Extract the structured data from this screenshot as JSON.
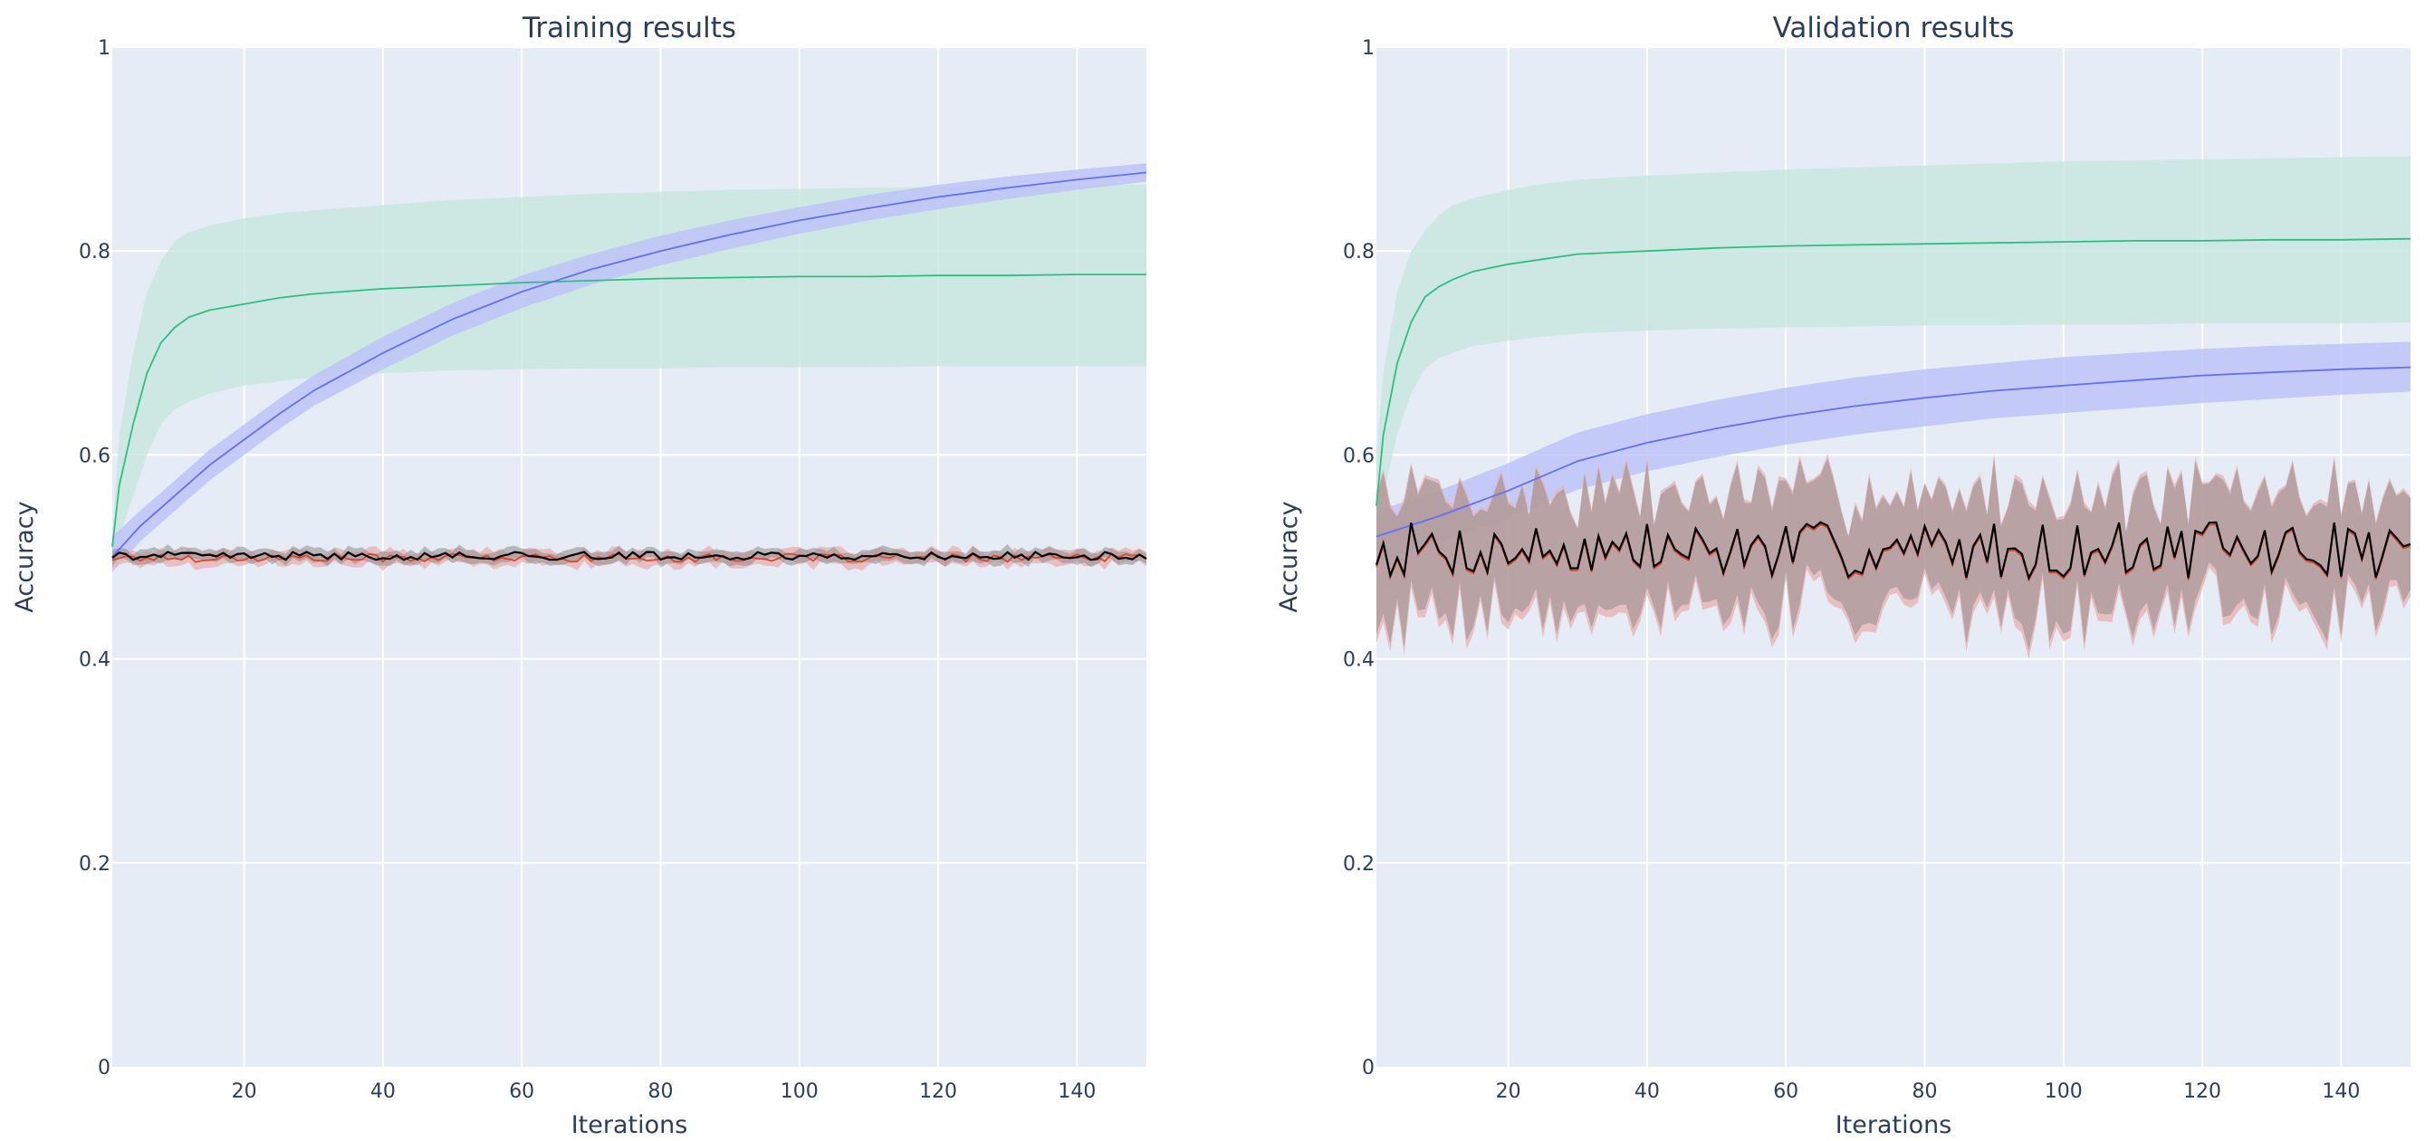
{
  "colors": {
    "plot_bg": "#e5ecf6",
    "grid": "#ffffff",
    "text": "#2a3f5f",
    "blue": "#636efa",
    "green": "#2ebf80",
    "red": "#d9482b",
    "black": "#000000",
    "blue_band": "#bcc2f8",
    "green_band": "#c7e6df",
    "red_band": "#e8b4b4",
    "black_band": "#8f8a8a"
  },
  "chart_data": [
    {
      "type": "line",
      "title": "Training results",
      "xlabel": "Iterations",
      "ylabel": "Accuracy",
      "xlim": [
        1,
        150
      ],
      "ylim": [
        0,
        1
      ],
      "x_ticks": [
        20,
        40,
        60,
        80,
        100,
        120,
        140
      ],
      "y_ticks": [
        0,
        0.2,
        0.4,
        0.6,
        0.8,
        1
      ],
      "y_tick_labels": [
        "0",
        "0.2",
        "0.4",
        "0.6",
        "0.8",
        "1"
      ],
      "grid": true,
      "series": [
        {
          "color_key": "green",
          "x": [
            1,
            2,
            4,
            6,
            8,
            10,
            12,
            15,
            20,
            25,
            30,
            40,
            50,
            60,
            70,
            80,
            90,
            100,
            110,
            120,
            130,
            140,
            150
          ],
          "values": [
            0.51,
            0.57,
            0.63,
            0.68,
            0.71,
            0.725,
            0.735,
            0.742,
            0.748,
            0.754,
            0.758,
            0.763,
            0.766,
            0.769,
            0.771,
            0.773,
            0.774,
            0.775,
            0.775,
            0.776,
            0.776,
            0.777,
            0.777
          ],
          "upper": [
            0.52,
            0.62,
            0.7,
            0.76,
            0.79,
            0.81,
            0.818,
            0.825,
            0.832,
            0.837,
            0.84,
            0.845,
            0.85,
            0.853,
            0.856,
            0.858,
            0.86,
            0.861,
            0.862,
            0.863,
            0.864,
            0.865,
            0.865
          ],
          "lower": [
            0.5,
            0.52,
            0.56,
            0.6,
            0.63,
            0.645,
            0.652,
            0.66,
            0.668,
            0.672,
            0.676,
            0.68,
            0.683,
            0.684,
            0.685,
            0.685,
            0.686,
            0.686,
            0.686,
            0.687,
            0.687,
            0.687,
            0.687
          ]
        },
        {
          "color_key": "blue",
          "x": [
            1,
            5,
            10,
            15,
            20,
            25,
            30,
            40,
            50,
            60,
            70,
            80,
            90,
            100,
            110,
            120,
            130,
            140,
            150
          ],
          "values": [
            0.5,
            0.53,
            0.56,
            0.59,
            0.615,
            0.64,
            0.663,
            0.7,
            0.733,
            0.76,
            0.782,
            0.8,
            0.816,
            0.83,
            0.842,
            0.853,
            0.862,
            0.87,
            0.877
          ],
          "upper": [
            0.52,
            0.545,
            0.575,
            0.605,
            0.63,
            0.655,
            0.678,
            0.716,
            0.749,
            0.776,
            0.797,
            0.815,
            0.83,
            0.843,
            0.855,
            0.865,
            0.873,
            0.88,
            0.886
          ],
          "lower": [
            0.485,
            0.515,
            0.545,
            0.575,
            0.6,
            0.625,
            0.648,
            0.684,
            0.717,
            0.744,
            0.767,
            0.786,
            0.802,
            0.817,
            0.83,
            0.841,
            0.851,
            0.86,
            0.868
          ]
        },
        {
          "color_key": "red",
          "x_range": [
            1,
            150
          ],
          "center": 0.499,
          "spread": 0.004,
          "band": 0.007,
          "seed": 17
        },
        {
          "color_key": "black",
          "x_range": [
            1,
            150
          ],
          "center": 0.501,
          "spread": 0.004,
          "band": 0.006,
          "seed": 41
        }
      ]
    },
    {
      "type": "line",
      "title": "Validation results",
      "xlabel": "Iterations",
      "ylabel": "Accuracy",
      "xlim": [
        1,
        150
      ],
      "ylim": [
        0,
        1
      ],
      "x_ticks": [
        20,
        40,
        60,
        80,
        100,
        120,
        140
      ],
      "y_ticks": [
        0,
        0.2,
        0.4,
        0.6,
        0.8,
        1
      ],
      "y_tick_labels": [
        "0",
        "0.2",
        "0.4",
        "0.6",
        "0.8",
        "1"
      ],
      "grid": true,
      "series": [
        {
          "color_key": "green",
          "x": [
            1,
            2,
            4,
            6,
            8,
            10,
            12,
            15,
            20,
            25,
            30,
            40,
            50,
            60,
            70,
            80,
            90,
            100,
            110,
            120,
            130,
            140,
            150
          ],
          "values": [
            0.55,
            0.62,
            0.69,
            0.73,
            0.755,
            0.765,
            0.772,
            0.78,
            0.787,
            0.792,
            0.797,
            0.8,
            0.803,
            0.805,
            0.806,
            0.807,
            0.808,
            0.809,
            0.81,
            0.81,
            0.811,
            0.811,
            0.812
          ],
          "upper": [
            0.6,
            0.68,
            0.76,
            0.8,
            0.82,
            0.835,
            0.845,
            0.852,
            0.86,
            0.866,
            0.87,
            0.874,
            0.877,
            0.88,
            0.882,
            0.884,
            0.886,
            0.888,
            0.889,
            0.89,
            0.891,
            0.892,
            0.893
          ],
          "lower": [
            0.5,
            0.56,
            0.62,
            0.66,
            0.685,
            0.695,
            0.7,
            0.707,
            0.712,
            0.716,
            0.719,
            0.722,
            0.724,
            0.725,
            0.726,
            0.727,
            0.727,
            0.728,
            0.728,
            0.729,
            0.729,
            0.729,
            0.73
          ]
        },
        {
          "color_key": "blue",
          "x": [
            1,
            10,
            20,
            30,
            40,
            50,
            60,
            70,
            80,
            90,
            100,
            110,
            120,
            130,
            140,
            150
          ],
          "values": [
            0.52,
            0.54,
            0.565,
            0.594,
            0.612,
            0.626,
            0.638,
            0.648,
            0.656,
            0.663,
            0.668,
            0.673,
            0.678,
            0.681,
            0.684,
            0.686
          ],
          "upper": [
            0.545,
            0.565,
            0.592,
            0.622,
            0.64,
            0.654,
            0.666,
            0.676,
            0.684,
            0.69,
            0.696,
            0.7,
            0.704,
            0.707,
            0.709,
            0.711
          ],
          "lower": [
            0.495,
            0.515,
            0.538,
            0.566,
            0.584,
            0.598,
            0.61,
            0.62,
            0.628,
            0.636,
            0.641,
            0.646,
            0.651,
            0.655,
            0.659,
            0.662
          ]
        },
        {
          "color_key": "red",
          "x_range": [
            1,
            150
          ],
          "center": 0.505,
          "spread": 0.028,
          "band": 0.06,
          "seed": 7
        },
        {
          "color_key": "black",
          "x_range": [
            1,
            150
          ],
          "center": 0.507,
          "spread": 0.028,
          "band": 0.055,
          "seed": 7
        }
      ]
    }
  ]
}
